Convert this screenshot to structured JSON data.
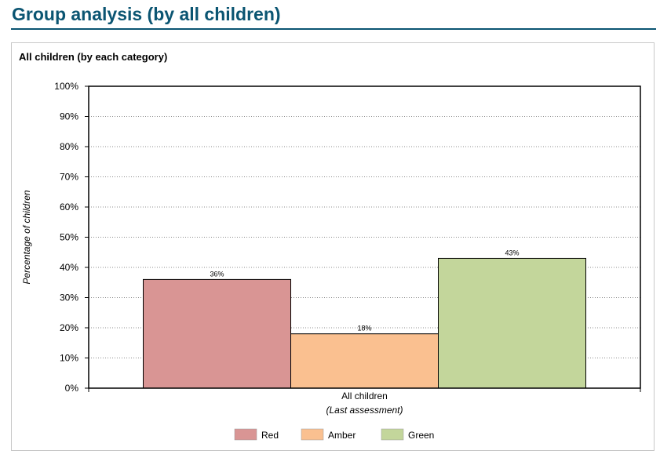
{
  "page": {
    "title": "Group analysis (by all children)"
  },
  "panel": {
    "title": "All children (by each category)"
  },
  "chart_data": {
    "type": "bar",
    "title": "All children (by each category)",
    "categories": [
      "All children"
    ],
    "xlabel": "(Last assessment)",
    "ylabel": "Percentage of children",
    "ylim": [
      0,
      100
    ],
    "y_ticks": [
      "0%",
      "10%",
      "20%",
      "30%",
      "40%",
      "50%",
      "60%",
      "70%",
      "80%",
      "90%",
      "100%"
    ],
    "y_tick_values": [
      0,
      10,
      20,
      30,
      40,
      50,
      60,
      70,
      80,
      90,
      100
    ],
    "grid": "horizontal dotted",
    "legend_position": "bottom",
    "series": [
      {
        "name": "Red",
        "values": [
          36
        ],
        "label": "36%",
        "color": "#d99594"
      },
      {
        "name": "Amber",
        "values": [
          18
        ],
        "label": "18%",
        "color": "#fac090"
      },
      {
        "name": "Green",
        "values": [
          43
        ],
        "label": "43%",
        "color": "#c3d69b"
      }
    ]
  }
}
